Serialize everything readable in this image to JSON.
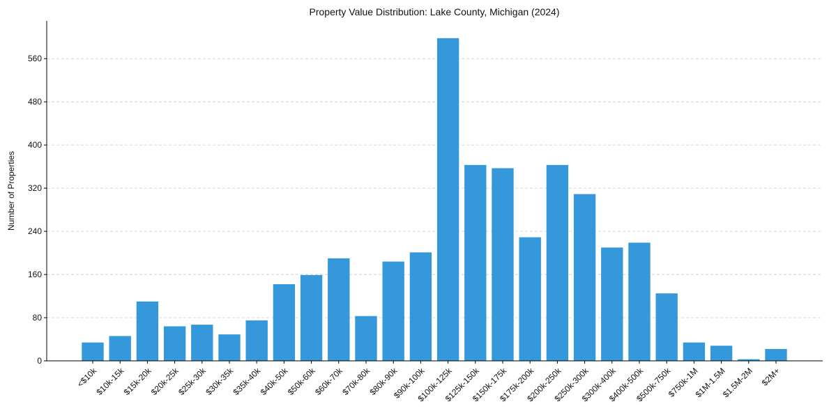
{
  "chart_data": {
    "type": "bar",
    "title": "Property Value Distribution: Lake County, Michigan (2024)",
    "xlabel": "",
    "ylabel": "Number of Properties",
    "ylim": [
      0,
      630
    ],
    "yticks": [
      0,
      80,
      160,
      240,
      320,
      400,
      480,
      560
    ],
    "grid": "y-dashed",
    "bar_color": "#3498db",
    "categories": [
      "<$10k",
      "$10k-15k",
      "$15k-20k",
      "$20k-25k",
      "$25k-30k",
      "$30k-35k",
      "$35k-40k",
      "$40k-50k",
      "$50k-60k",
      "$60k-70k",
      "$70k-80k",
      "$80k-90k",
      "$90k-100k",
      "$100k-125k",
      "$125k-150k",
      "$150k-175k",
      "$175k-200k",
      "$200k-250k",
      "$250k-300k",
      "$300k-400k",
      "$400k-500k",
      "$500k-750k",
      "$750k-1M",
      "$1M-1.5M",
      "$1.5M-2M",
      "$2M+"
    ],
    "values": [
      34,
      46,
      110,
      64,
      67,
      49,
      75,
      142,
      159,
      190,
      83,
      184,
      201,
      598,
      363,
      357,
      229,
      363,
      309,
      210,
      219,
      125,
      34,
      28,
      3,
      22
    ]
  }
}
